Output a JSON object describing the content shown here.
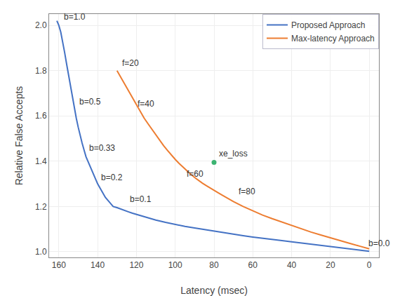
{
  "chart_data": {
    "type": "line",
    "xlabel": "Latency (msec)",
    "ylabel": "Relative False Accepts",
    "xlim": [
      165,
      -5
    ],
    "ylim": [
      0.975,
      2.05
    ],
    "xticks": [
      160,
      140,
      120,
      100,
      80,
      60,
      40,
      20,
      0
    ],
    "yticks": [
      {
        "value": 1.0,
        "label": "1.0"
      },
      1.2,
      1.4,
      1.6,
      1.8,
      {
        "value": 2.0,
        "label": "2.0"
      }
    ],
    "grid": true,
    "legend": "upper right",
    "series": [
      {
        "name": "Proposed Approach",
        "color": "#4472c4",
        "x": [
          161,
          160,
          159,
          158,
          157,
          156,
          155,
          154,
          153,
          152,
          151,
          150,
          149,
          148,
          147,
          146,
          145,
          144,
          143,
          142,
          141,
          140,
          138,
          136,
          134,
          132,
          130,
          128,
          126,
          124,
          122,
          120,
          115,
          110,
          105,
          100,
          95,
          90,
          85,
          80,
          75,
          70,
          65,
          60,
          55,
          50,
          45,
          40,
          35,
          30,
          25,
          20,
          15,
          10,
          5,
          2,
          0
        ],
        "values": [
          2.02,
          2.0,
          1.97,
          1.93,
          1.88,
          1.83,
          1.78,
          1.73,
          1.68,
          1.63,
          1.59,
          1.55,
          1.51,
          1.48,
          1.45,
          1.42,
          1.4,
          1.38,
          1.36,
          1.34,
          1.32,
          1.3,
          1.27,
          1.24,
          1.22,
          1.2,
          1.195,
          1.188,
          1.182,
          1.176,
          1.17,
          1.165,
          1.152,
          1.14,
          1.13,
          1.12,
          1.112,
          1.105,
          1.098,
          1.09,
          1.083,
          1.077,
          1.071,
          1.065,
          1.059,
          1.054,
          1.049,
          1.044,
          1.039,
          1.034,
          1.028,
          1.022,
          1.017,
          1.012,
          1.007,
          1.004,
          1.002
        ]
      },
      {
        "name": "Max-latency Approach",
        "color": "#ed7d31",
        "x": [
          130,
          128,
          126,
          124,
          122,
          120,
          118,
          116,
          114,
          112,
          110,
          108,
          106,
          104,
          102,
          100,
          98,
          96,
          94,
          92,
          90,
          88,
          86,
          84,
          82,
          80,
          78,
          76,
          74,
          72,
          70,
          65,
          60,
          55,
          50,
          45,
          40,
          35,
          30,
          25,
          20,
          15,
          10,
          5,
          2,
          0
        ],
        "values": [
          1.8,
          1.77,
          1.74,
          1.71,
          1.68,
          1.65,
          1.62,
          1.59,
          1.565,
          1.54,
          1.515,
          1.492,
          1.469,
          1.448,
          1.427,
          1.408,
          1.39,
          1.373,
          1.357,
          1.342,
          1.328,
          1.315,
          1.303,
          1.292,
          1.281,
          1.271,
          1.261,
          1.251,
          1.241,
          1.232,
          1.222,
          1.2,
          1.18,
          1.162,
          1.146,
          1.131,
          1.116,
          1.101,
          1.087,
          1.074,
          1.061,
          1.049,
          1.037,
          1.025,
          1.018,
          1.013
        ]
      }
    ],
    "points": [
      {
        "label": "xe_loss",
        "x": 80,
        "y": 1.395,
        "color": "#3cb371"
      }
    ],
    "annotations": [
      {
        "text": "b=1.0",
        "x": 158,
        "y": 2.01
      },
      {
        "text": "b=0.5",
        "x": 150,
        "y": 1.635
      },
      {
        "text": "b=0.33",
        "x": 145,
        "y": 1.43
      },
      {
        "text": "b=0.2",
        "x": 139,
        "y": 1.3
      },
      {
        "text": "b=0.1",
        "x": 124,
        "y": 1.205
      },
      {
        "text": "b=0.0",
        "x": 1,
        "y": 1.008
      },
      {
        "text": "f=20",
        "x": 128,
        "y": 1.805
      },
      {
        "text": "f=40",
        "x": 120,
        "y": 1.625
      },
      {
        "text": "f=60",
        "x": 95,
        "y": 1.315
      },
      {
        "text": "f=80",
        "x": 68,
        "y": 1.237
      }
    ]
  }
}
